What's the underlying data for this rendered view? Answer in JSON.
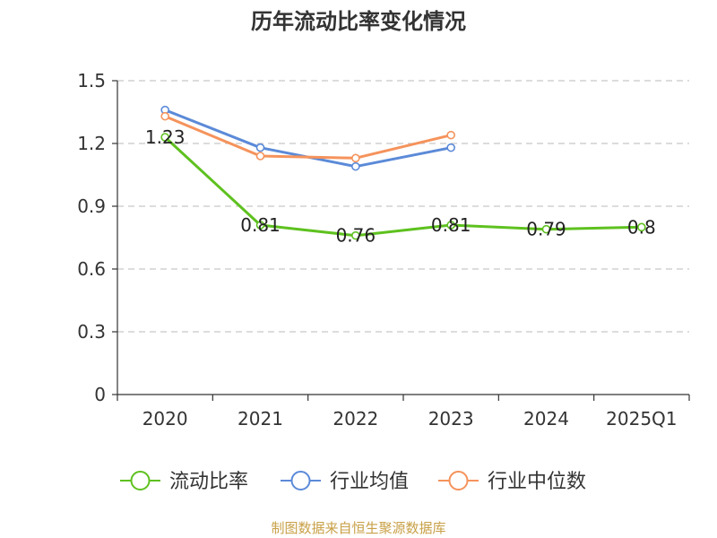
{
  "chart_data": {
    "type": "line",
    "title": "历年流动比率变化情况",
    "categories": [
      "2020",
      "2021",
      "2022",
      "2023",
      "2024",
      "2025Q1"
    ],
    "ylim": [
      0,
      1.5
    ],
    "yticks": [
      "0",
      "0.3",
      "0.6",
      "0.9",
      "1.2",
      "1.5"
    ],
    "ytick_values": [
      0,
      0.3,
      0.6,
      0.9,
      1.2,
      1.5
    ],
    "grid": true,
    "legend_position": "bottom",
    "series": [
      {
        "name": "流动比率",
        "color": "#5ec11f",
        "values": [
          1.23,
          0.81,
          0.76,
          0.81,
          0.79,
          0.8
        ],
        "labels": [
          "1.23",
          "0.81",
          "0.76",
          "0.81",
          "0.79",
          "0.8"
        ]
      },
      {
        "name": "行业均值",
        "color": "#5b8ad8",
        "values": [
          1.36,
          1.18,
          1.09,
          1.18,
          null,
          null
        ]
      },
      {
        "name": "行业中位数",
        "color": "#f5935c",
        "values": [
          1.33,
          1.14,
          1.13,
          1.24,
          null,
          null
        ]
      }
    ]
  },
  "footer": {
    "source": "制图数据来自恒生聚源数据库"
  }
}
